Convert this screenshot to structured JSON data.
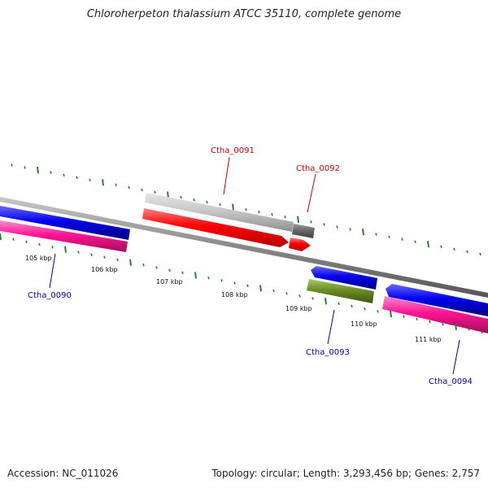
{
  "title": "Chloroherpeton thalassium ATCC 35110, complete genome",
  "footer": {
    "accession": "Accession: NC_011026",
    "summary": "Topology: circular; Length: 3,293,456 bp; Genes: 2,757"
  },
  "ticks": [
    {
      "label": "105 kbp"
    },
    {
      "label": "106 kbp"
    },
    {
      "label": "107 kbp"
    },
    {
      "label": "108 kbp"
    },
    {
      "label": "109 kbp"
    },
    {
      "label": "110 kbp"
    },
    {
      "label": "111 kbp"
    }
  ],
  "genes": [
    {
      "label": "Ctha_0090",
      "color": "#0000aa"
    },
    {
      "label": "Ctha_0091",
      "color": "#cc0000"
    },
    {
      "label": "Ctha_0092",
      "color": "#cc0000"
    },
    {
      "label": "Ctha_0093",
      "color": "#0000aa"
    },
    {
      "label": "Ctha_0094",
      "color": "#0000aa"
    }
  ],
  "colors": {
    "forward_cds": "#ff0000",
    "forward_other": "#bbbbbb",
    "forward_pseudo": "#666666",
    "reverse_cds": "#0000ee",
    "reverse_gc": "#ff1493",
    "reverse_other": "#6b8e23",
    "tick": "#2e7d32",
    "backbone": "#888888"
  }
}
